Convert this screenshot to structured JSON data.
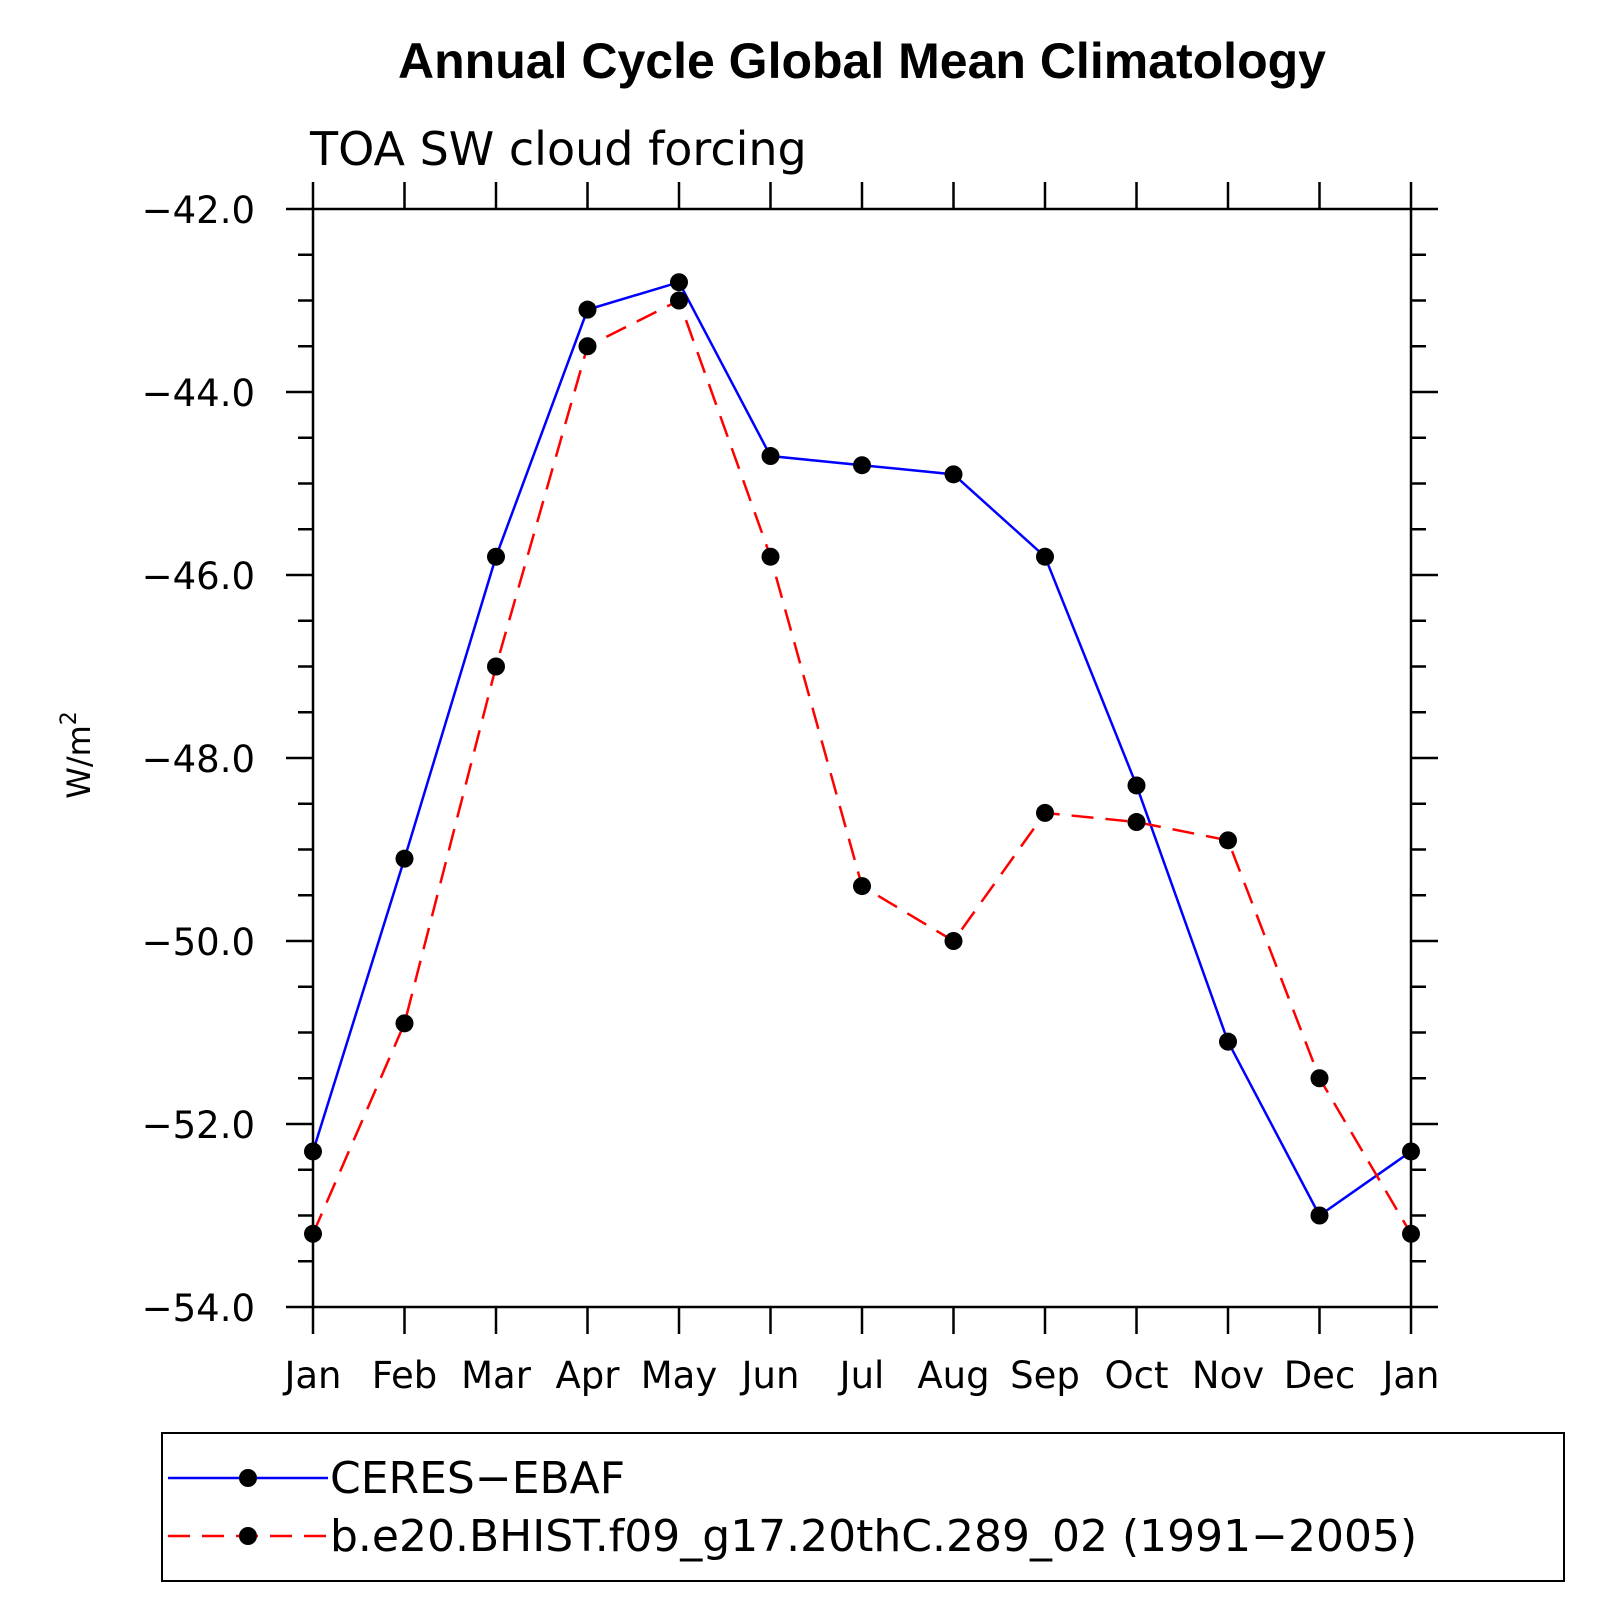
{
  "chart_data": {
    "type": "line",
    "title": "Annual Cycle Global Mean Climatology",
    "subtitle": "TOA SW cloud forcing",
    "ylabel": "W/m",
    "ylabel_sup": "2",
    "xlabel": "",
    "categories": [
      "Jan",
      "Feb",
      "Mar",
      "Apr",
      "May",
      "Jun",
      "Jul",
      "Aug",
      "Sep",
      "Oct",
      "Nov",
      "Dec",
      "Jan"
    ],
    "ylim": [
      -54.0,
      -42.0
    ],
    "yticks": [
      "-42.0",
      "-44.0",
      "-46.0",
      "-48.0",
      "-50.0",
      "-52.0",
      "-54.0"
    ],
    "grid": false,
    "legend_position": "bottom",
    "series": [
      {
        "name": "CERES-EBAF",
        "color": "#0000ff",
        "dash": "solid",
        "marker": "filled-circle",
        "values": [
          -52.3,
          -49.1,
          -45.8,
          -43.1,
          -42.8,
          -44.7,
          -44.8,
          -44.9,
          -45.8,
          -48.3,
          -51.1,
          -53.0,
          -52.3
        ]
      },
      {
        "name": "b.e20.BHIST.f09_g17.20thC.289_02 (1991-2005)",
        "color": "#ff0000",
        "dash": "dashed",
        "marker": "filled-circle",
        "values": [
          -53.2,
          -50.9,
          -47.0,
          -43.5,
          -43.0,
          -45.8,
          -49.4,
          -50.0,
          -48.6,
          -48.7,
          -48.9,
          -51.5,
          -53.2
        ]
      }
    ]
  }
}
